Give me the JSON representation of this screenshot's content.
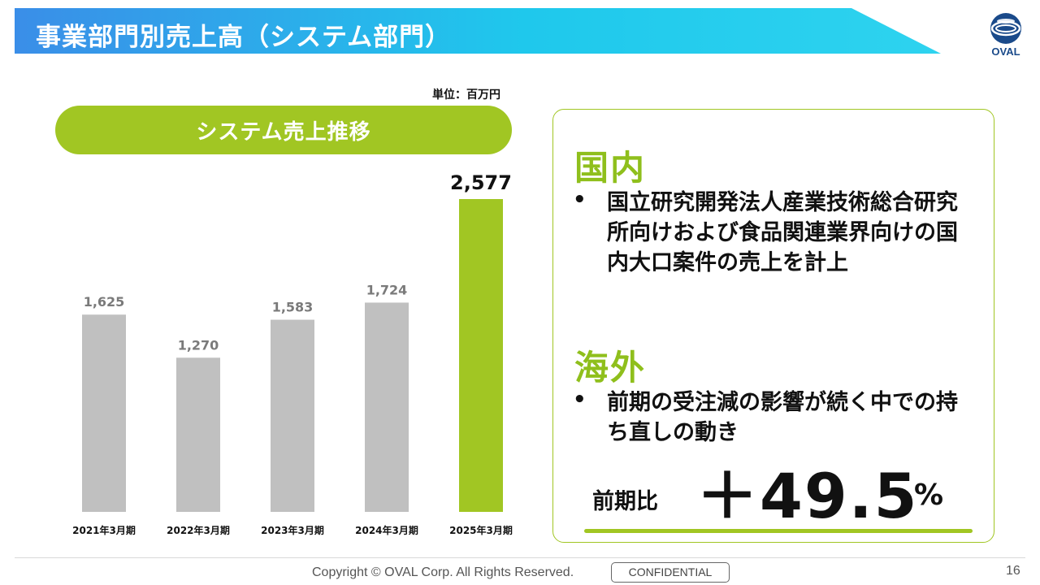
{
  "slide": {
    "title": "事業部門別売上高（システム部門）",
    "logo_text": "OVAL",
    "unit_label": "単位：百万円",
    "chart_heading": "システム売上推移"
  },
  "colors": {
    "banner_start": "#3a8ee8",
    "banner_end": "#2ed3ef",
    "accent_green": "#a1c623",
    "heading_green": "#8fbf1c",
    "bar_gray": "#c0c0c0",
    "value_gray": "#7a7a7a"
  },
  "chart_data": {
    "type": "bar",
    "title": "システム売上推移",
    "unit": "単位：百万円",
    "categories": [
      "2021年3月期",
      "2022年3月期",
      "2023年3月期",
      "2024年3月期",
      "2025年3月期"
    ],
    "values": [
      1625,
      1270,
      1583,
      1724,
      2577
    ],
    "value_labels": [
      "1,625",
      "1,270",
      "1,583",
      "1,724",
      "2,577"
    ],
    "highlight_index": 4,
    "ylim": [
      0,
      2577
    ],
    "grid": false,
    "legend": "none"
  },
  "panel": {
    "domestic": {
      "heading": "国内",
      "bullet_symbol": "•",
      "bullet": "国立研究開発法人産業技術総合研究所向けおよび食品関連業界向けの国内大口案件の売上を計上"
    },
    "overseas": {
      "heading": "海外",
      "bullet_symbol": "•",
      "bullet": "前期の受注減の影響が続く中での持ち直しの動き"
    },
    "comparison": {
      "label": "前期比",
      "value": "＋49.5",
      "unit": "%"
    }
  },
  "footer": {
    "copyright": "Copyright © OVAL Corp. All Rights Reserved.",
    "confidential": "CONFIDENTIAL",
    "page_number": "16"
  }
}
